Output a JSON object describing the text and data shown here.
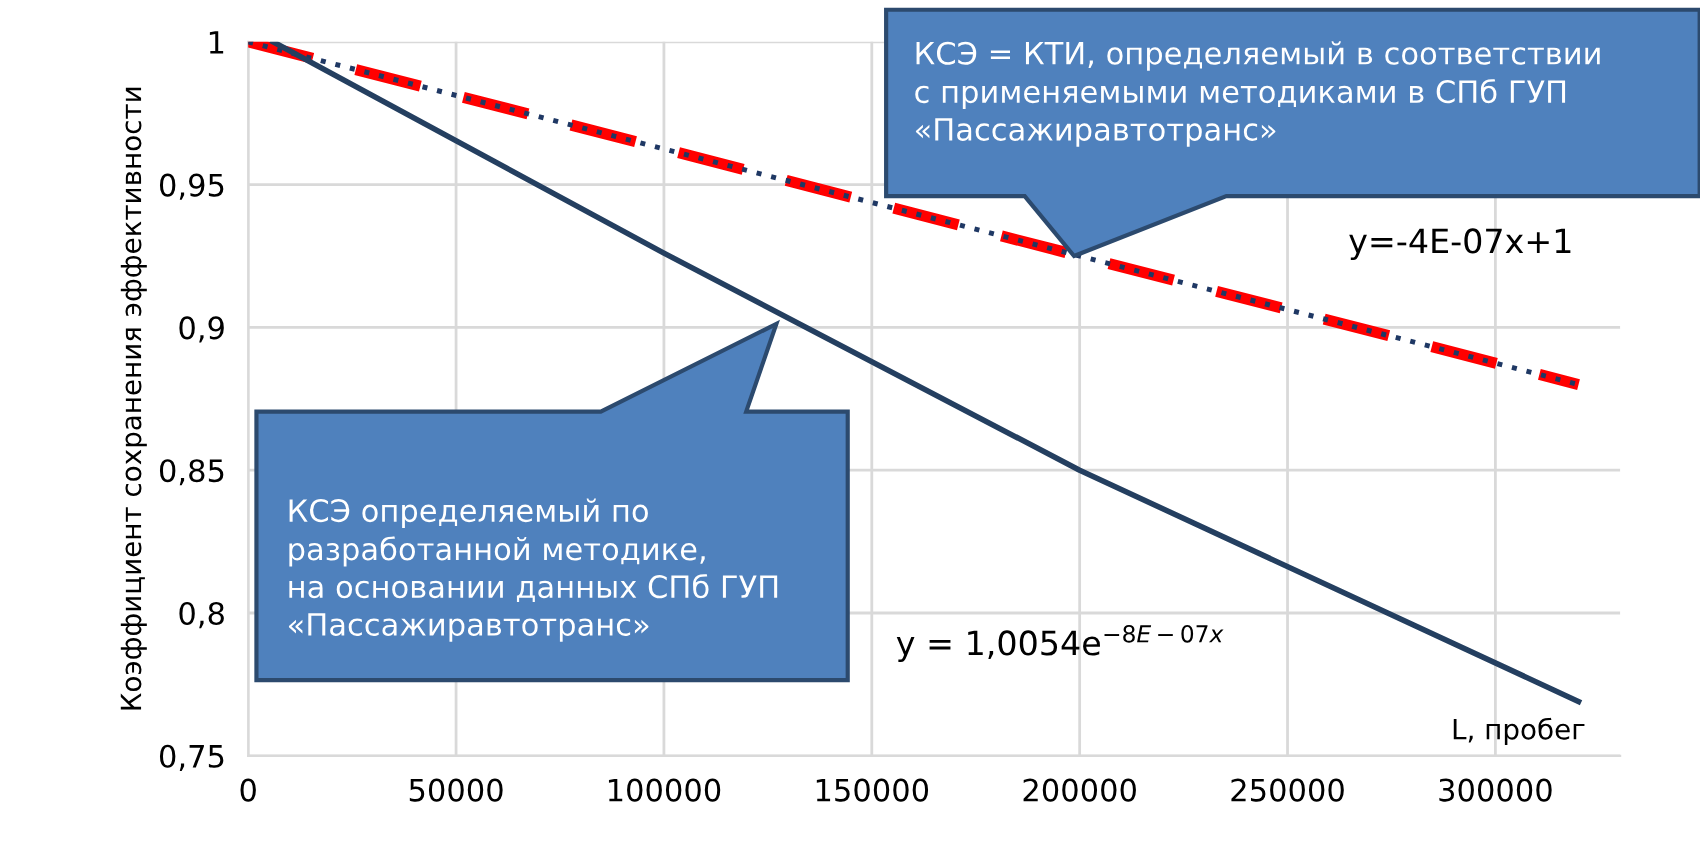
{
  "chart_data": {
    "type": "line",
    "ylabel": "Коэффициент сохранения эффективности",
    "xlabel": "L, пробег",
    "xlim": [
      0,
      330000
    ],
    "xticks": [
      0,
      50000,
      100000,
      150000,
      200000,
      250000,
      300000
    ],
    "ylim": [
      0.75,
      1
    ],
    "yticks": [
      {
        "value": 0.75,
        "label": "0,75"
      },
      {
        "value": 0.8,
        "label": "0,8"
      },
      {
        "value": 0.85,
        "label": "0,85"
      },
      {
        "value": 0.9,
        "label": "0,9"
      },
      {
        "value": 0.95,
        "label": "0,95"
      },
      1
    ],
    "grid": true,
    "series": [
      {
        "color": "#ff0000",
        "line_style": "dashed",
        "x": [
          0,
          320000
        ],
        "values": [
          1,
          0.88
        ]
      },
      {
        "color": "#1f3864",
        "line_style": "dotted",
        "x": [
          0,
          320000
        ],
        "values": [
          1,
          0.88
        ]
      },
      {
        "color": "#243f60",
        "line_style": "solid",
        "x": [
          6000,
          100000,
          200000,
          320000
        ],
        "values": [
          1,
          0.926,
          0.85,
          0.769
        ]
      }
    ],
    "annotations": [
      "КСЭ определяемый по\nразработанной методике,\nна основании данных СПб ГУП\n«Пассажиравтотранс»",
      "КСЭ = КТИ, определяемый в соответствии\nс применяемыми методиками в СПб ГУП\n«Пассажиравтотранс»",
      "y=-4E-07x+1",
      "y = 1,0054e$^{−8E−07x}$"
    ]
  }
}
